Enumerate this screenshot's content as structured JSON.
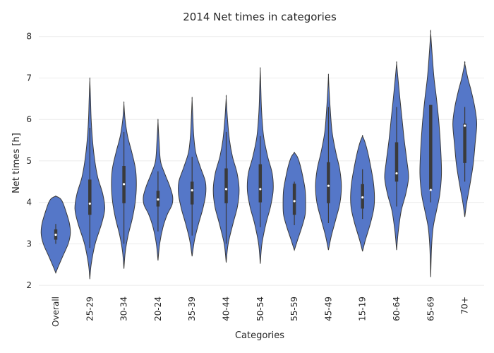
{
  "chart_data": {
    "type": "violin",
    "title": "2014 Net times in categories",
    "xlabel": "Categories",
    "ylabel": "Net times [h]",
    "ylim": [
      1.9,
      8.2
    ],
    "yticks": [
      2,
      3,
      4,
      5,
      6,
      7,
      8
    ],
    "grid": "horizontal",
    "color": "#5577c8",
    "categories": [
      "Overall",
      "25-29",
      "30-34",
      "20-24",
      "35-39",
      "40-44",
      "50-54",
      "55-59",
      "45-49",
      "15-19",
      "60-64",
      "65-69",
      "70+"
    ],
    "distributions": [
      {
        "category": "Overall",
        "min": 2.3,
        "max": 4.15,
        "q1": 3.1,
        "median": 3.22,
        "q3": 3.35,
        "whisker_low": 3.0,
        "whisker_high": 3.48,
        "profile": [
          [
            2.3,
            0
          ],
          [
            2.45,
            0.15
          ],
          [
            2.7,
            0.42
          ],
          [
            3.0,
            0.75
          ],
          [
            3.25,
            0.88
          ],
          [
            3.5,
            0.82
          ],
          [
            3.8,
            0.6
          ],
          [
            4.0,
            0.42
          ],
          [
            4.1,
            0.25
          ],
          [
            4.15,
            0
          ]
        ]
      },
      {
        "category": "25-29",
        "min": 2.15,
        "max": 6.95,
        "q1": 3.7,
        "median": 3.97,
        "q3": 4.55,
        "whisker_low": 2.9,
        "whisker_high": 5.8,
        "profile": [
          [
            2.15,
            0
          ],
          [
            2.5,
            0.08
          ],
          [
            3.0,
            0.32
          ],
          [
            3.5,
            0.72
          ],
          [
            3.85,
            0.9
          ],
          [
            4.2,
            0.78
          ],
          [
            4.6,
            0.48
          ],
          [
            5.0,
            0.3
          ],
          [
            5.5,
            0.16
          ],
          [
            6.0,
            0.08
          ],
          [
            6.5,
            0.04
          ],
          [
            6.95,
            0
          ]
        ]
      },
      {
        "category": "30-34",
        "min": 2.4,
        "max": 6.38,
        "q1": 3.98,
        "median": 4.44,
        "q3": 4.88,
        "whisker_low": 3.0,
        "whisker_high": 5.7,
        "profile": [
          [
            2.4,
            0
          ],
          [
            2.8,
            0.08
          ],
          [
            3.2,
            0.25
          ],
          [
            3.6,
            0.5
          ],
          [
            4.0,
            0.68
          ],
          [
            4.4,
            0.75
          ],
          [
            4.8,
            0.7
          ],
          [
            5.2,
            0.48
          ],
          [
            5.6,
            0.22
          ],
          [
            6.0,
            0.07
          ],
          [
            6.38,
            0
          ]
        ]
      },
      {
        "category": "20-24",
        "min": 2.6,
        "max": 5.95,
        "q1": 3.9,
        "median": 4.07,
        "q3": 4.28,
        "whisker_low": 3.3,
        "whisker_high": 4.75,
        "profile": [
          [
            2.6,
            0
          ],
          [
            3.0,
            0.1
          ],
          [
            3.4,
            0.3
          ],
          [
            3.7,
            0.55
          ],
          [
            3.95,
            0.85
          ],
          [
            4.15,
            0.88
          ],
          [
            4.4,
            0.7
          ],
          [
            4.7,
            0.4
          ],
          [
            5.0,
            0.15
          ],
          [
            5.5,
            0.06
          ],
          [
            5.95,
            0
          ]
        ]
      },
      {
        "category": "35-39",
        "min": 2.7,
        "max": 6.48,
        "q1": 3.95,
        "median": 4.29,
        "q3": 4.5,
        "whisker_low": 3.2,
        "whisker_high": 5.1,
        "profile": [
          [
            2.7,
            0
          ],
          [
            3.1,
            0.15
          ],
          [
            3.5,
            0.4
          ],
          [
            3.85,
            0.65
          ],
          [
            4.2,
            0.82
          ],
          [
            4.5,
            0.8
          ],
          [
            4.85,
            0.5
          ],
          [
            5.2,
            0.22
          ],
          [
            5.6,
            0.1
          ],
          [
            6.0,
            0.05
          ],
          [
            6.48,
            0
          ]
        ]
      },
      {
        "category": "40-44",
        "min": 2.55,
        "max": 6.52,
        "q1": 3.98,
        "median": 4.32,
        "q3": 4.82,
        "whisker_low": 3.0,
        "whisker_high": 5.7,
        "profile": [
          [
            2.55,
            0
          ],
          [
            3.0,
            0.12
          ],
          [
            3.5,
            0.42
          ],
          [
            3.9,
            0.68
          ],
          [
            4.3,
            0.78
          ],
          [
            4.7,
            0.66
          ],
          [
            5.1,
            0.38
          ],
          [
            5.5,
            0.2
          ],
          [
            6.0,
            0.08
          ],
          [
            6.52,
            0
          ]
        ]
      },
      {
        "category": "50-54",
        "min": 2.52,
        "max": 7.2,
        "q1": 4.0,
        "median": 4.32,
        "q3": 4.92,
        "whisker_low": 3.4,
        "whisker_high": 5.6,
        "profile": [
          [
            2.52,
            0
          ],
          [
            3.0,
            0.1
          ],
          [
            3.5,
            0.35
          ],
          [
            3.9,
            0.62
          ],
          [
            4.3,
            0.78
          ],
          [
            4.7,
            0.72
          ],
          [
            5.1,
            0.45
          ],
          [
            5.6,
            0.2
          ],
          [
            6.2,
            0.08
          ],
          [
            6.8,
            0.03
          ],
          [
            7.2,
            0
          ]
        ]
      },
      {
        "category": "55-59",
        "min": 2.85,
        "max": 5.2,
        "q1": 3.7,
        "median": 4.03,
        "q3": 4.45,
        "whisker_low": 3.45,
        "whisker_high": 4.5,
        "profile": [
          [
            2.85,
            0
          ],
          [
            3.1,
            0.2
          ],
          [
            3.4,
            0.45
          ],
          [
            3.7,
            0.65
          ],
          [
            4.0,
            0.68
          ],
          [
            4.3,
            0.65
          ],
          [
            4.6,
            0.52
          ],
          [
            4.9,
            0.35
          ],
          [
            5.1,
            0.18
          ],
          [
            5.2,
            0
          ]
        ]
      },
      {
        "category": "45-49",
        "min": 2.85,
        "max": 7.05,
        "q1": 3.98,
        "median": 4.4,
        "q3": 4.97,
        "whisker_low": 3.5,
        "whisker_high": 6.3,
        "profile": [
          [
            2.85,
            0
          ],
          [
            3.2,
            0.18
          ],
          [
            3.6,
            0.45
          ],
          [
            4.0,
            0.7
          ],
          [
            4.4,
            0.78
          ],
          [
            4.8,
            0.68
          ],
          [
            5.2,
            0.45
          ],
          [
            5.7,
            0.22
          ],
          [
            6.3,
            0.1
          ],
          [
            6.7,
            0.04
          ],
          [
            7.05,
            0
          ]
        ]
      },
      {
        "category": "15-19",
        "min": 2.82,
        "max": 5.6,
        "q1": 3.85,
        "median": 4.12,
        "q3": 4.44,
        "whisker_low": 3.6,
        "whisker_high": 4.8,
        "profile": [
          [
            2.82,
            0
          ],
          [
            3.1,
            0.18
          ],
          [
            3.5,
            0.48
          ],
          [
            3.85,
            0.68
          ],
          [
            4.15,
            0.72
          ],
          [
            4.5,
            0.65
          ],
          [
            4.85,
            0.5
          ],
          [
            5.2,
            0.32
          ],
          [
            5.45,
            0.15
          ],
          [
            5.6,
            0
          ]
        ]
      },
      {
        "category": "60-64",
        "min": 2.85,
        "max": 7.35,
        "q1": 4.5,
        "median": 4.7,
        "q3": 5.45,
        "whisker_low": 3.9,
        "whisker_high": 6.3,
        "profile": [
          [
            2.85,
            0
          ],
          [
            3.3,
            0.1
          ],
          [
            3.8,
            0.28
          ],
          [
            4.2,
            0.55
          ],
          [
            4.6,
            0.72
          ],
          [
            5.0,
            0.62
          ],
          [
            5.5,
            0.46
          ],
          [
            6.0,
            0.33
          ],
          [
            6.5,
            0.2
          ],
          [
            7.0,
            0.08
          ],
          [
            7.35,
            0
          ]
        ]
      },
      {
        "category": "65-69",
        "min": 2.2,
        "max": 8.08,
        "q1": 4.3,
        "median": 4.3,
        "q3": 6.35,
        "whisker_low": 4.0,
        "whisker_high": 6.35,
        "profile": [
          [
            2.2,
            0
          ],
          [
            2.9,
            0.05
          ],
          [
            3.4,
            0.15
          ],
          [
            3.8,
            0.35
          ],
          [
            4.2,
            0.55
          ],
          [
            4.7,
            0.65
          ],
          [
            5.3,
            0.6
          ],
          [
            5.9,
            0.5
          ],
          [
            6.5,
            0.35
          ],
          [
            7.0,
            0.2
          ],
          [
            7.5,
            0.1
          ],
          [
            8.08,
            0
          ]
        ]
      },
      {
        "category": "70+",
        "min": 3.65,
        "max": 7.35,
        "q1": 4.95,
        "median": 5.85,
        "q3": 5.9,
        "whisker_low": 4.5,
        "whisker_high": 6.3,
        "profile": [
          [
            3.65,
            0
          ],
          [
            4.0,
            0.12
          ],
          [
            4.4,
            0.3
          ],
          [
            4.9,
            0.5
          ],
          [
            5.4,
            0.62
          ],
          [
            5.9,
            0.72
          ],
          [
            6.3,
            0.6
          ],
          [
            6.7,
            0.38
          ],
          [
            7.0,
            0.18
          ],
          [
            7.35,
            0
          ]
        ]
      }
    ]
  }
}
